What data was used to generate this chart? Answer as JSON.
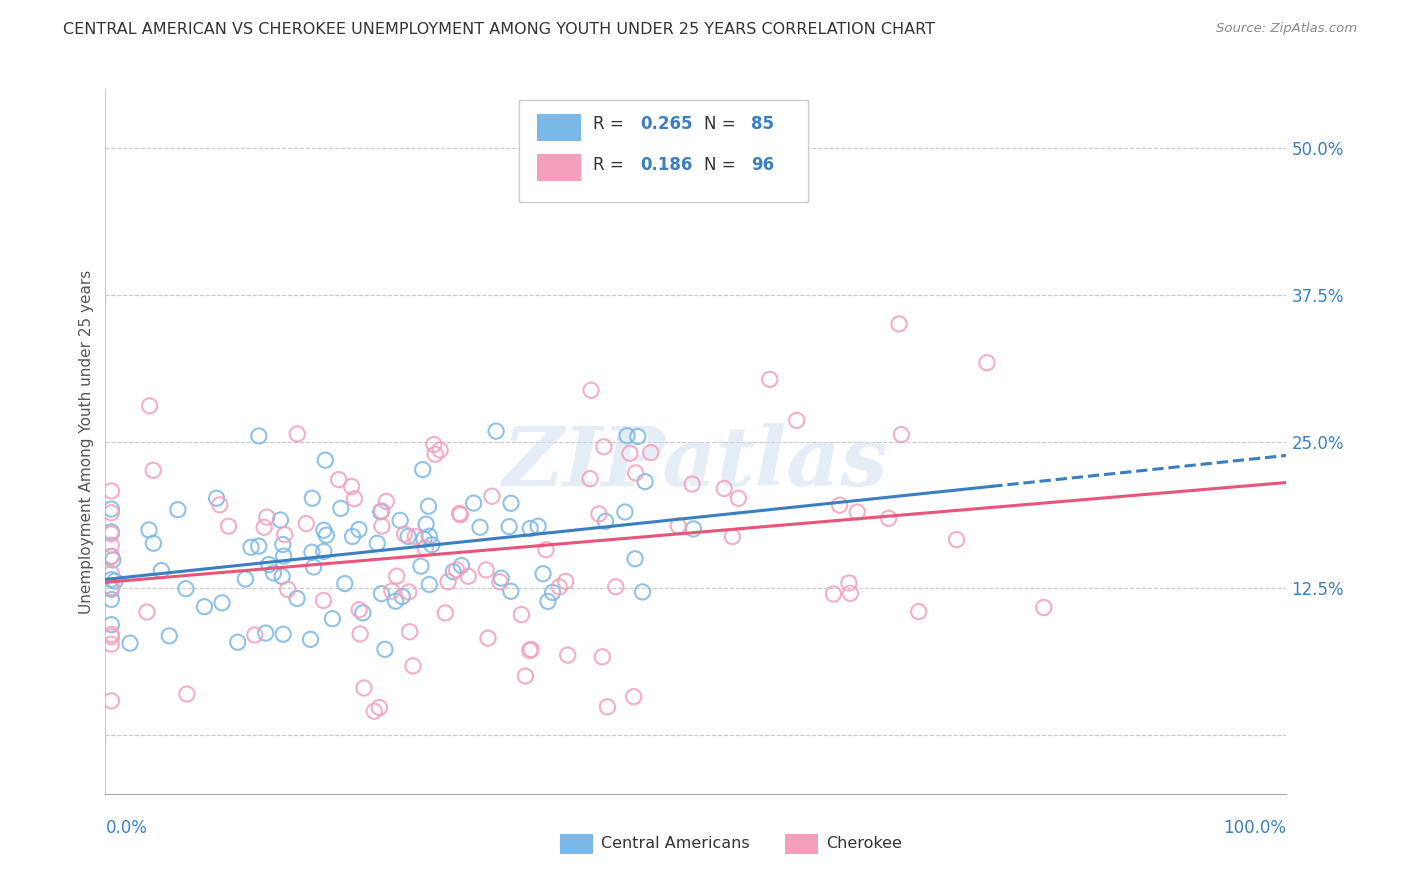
{
  "title": "CENTRAL AMERICAN VS CHEROKEE UNEMPLOYMENT AMONG YOUTH UNDER 25 YEARS CORRELATION CHART",
  "source": "Source: ZipAtlas.com",
  "ylabel": "Unemployment Among Youth under 25 years",
  "xlim": [
    0,
    100
  ],
  "ylim": [
    -5,
    55
  ],
  "yticks": [
    0,
    12.5,
    25,
    37.5,
    50
  ],
  "background_color": "#ffffff",
  "grid_color": "#c8c8c8",
  "watermark": "ZIPatlas",
  "blue_color": "#7ab8e8",
  "pink_color": "#f4a0bb",
  "blue_line_color": "#3a7fc1",
  "pink_line_color": "#e8547a",
  "R_blue": 0.265,
  "N_blue": 85,
  "R_pink": 0.186,
  "N_pink": 96
}
